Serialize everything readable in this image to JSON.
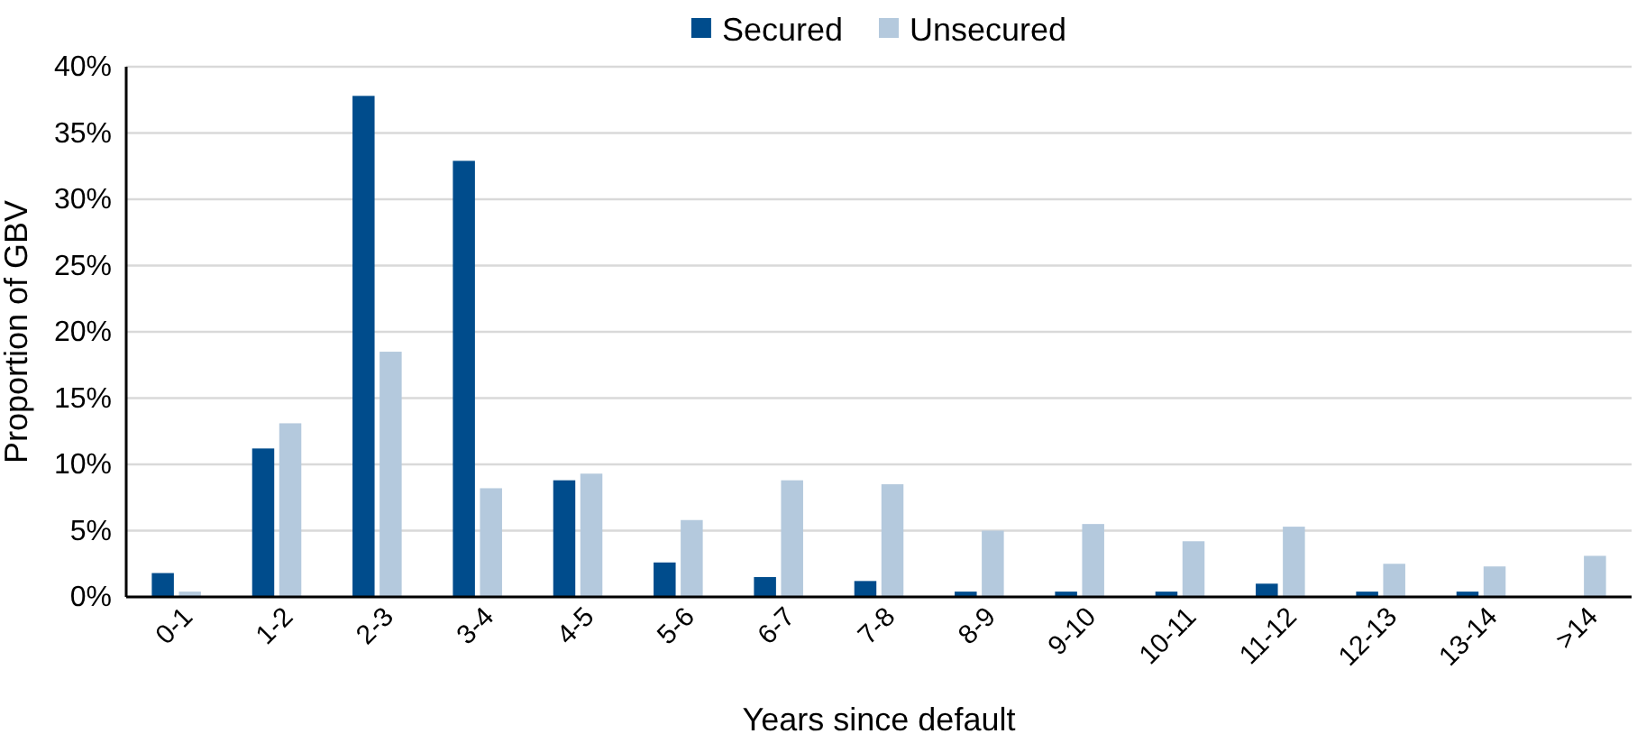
{
  "chart_data": {
    "type": "bar",
    "xlabel": "Years since default",
    "ylabel": "Proportion of GBV",
    "categories": [
      "0-1",
      "1-2",
      "2-3",
      "3-4",
      "4-5",
      "5-6",
      "6-7",
      "7-8",
      "8-9",
      "9-10",
      "10-11",
      "11-12",
      "12-13",
      "13-14",
      ">14"
    ],
    "series": [
      {
        "name": "Secured",
        "color": "#004c8c",
        "values": [
          1.8,
          11.2,
          37.8,
          32.9,
          8.8,
          2.6,
          1.5,
          1.2,
          0.4,
          0.4,
          0.4,
          1.0,
          0.4,
          0.4,
          0
        ]
      },
      {
        "name": "Unsecured",
        "color": "#b4c9dd",
        "values": [
          0.4,
          13.1,
          18.5,
          8.2,
          9.3,
          5.8,
          8.8,
          8.5,
          5.0,
          5.5,
          4.2,
          5.3,
          2.5,
          2.3,
          3.1
        ]
      }
    ],
    "ylim": [
      0,
      40
    ],
    "yticks": [
      {
        "value": 0,
        "label": "0%"
      },
      {
        "value": 5,
        "label": "5%"
      },
      {
        "value": 10,
        "label": "10%"
      },
      {
        "value": 15,
        "label": "15%"
      },
      {
        "value": 20,
        "label": "20%"
      },
      {
        "value": 25,
        "label": "25%"
      },
      {
        "value": 30,
        "label": "30%"
      },
      {
        "value": 35,
        "label": "35%"
      },
      {
        "value": 40,
        "label": "40%"
      }
    ],
    "grid": "y",
    "legend": "top"
  }
}
